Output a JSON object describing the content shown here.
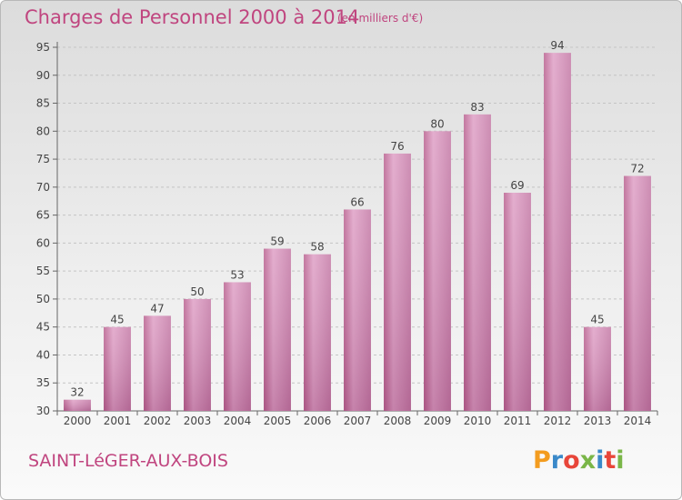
{
  "header": {
    "title": "Charges de Personnel 2000 à 2014",
    "subtitle": "(en milliers d'€)"
  },
  "footer": {
    "commune": "SAINT-LéGER-AUX-BOIS",
    "logo_text": "Proxiti",
    "logo_colors": [
      "#f39c1f",
      "#3a89c9",
      "#e8463a",
      "#7ab648",
      "#3a89c9",
      "#e8463a",
      "#7ab648"
    ]
  },
  "chart_data": {
    "type": "bar",
    "title": "Charges de Personnel 2000 à 2014",
    "subtitle": "(en milliers d'€)",
    "xlabel": "",
    "ylabel": "",
    "categories": [
      "2000",
      "2001",
      "2002",
      "2003",
      "2004",
      "2005",
      "2006",
      "2007",
      "2008",
      "2009",
      "2010",
      "2011",
      "2012",
      "2013",
      "2014"
    ],
    "values": [
      32,
      45,
      47,
      50,
      53,
      59,
      58,
      66,
      76,
      80,
      83,
      69,
      94,
      45,
      72
    ],
    "ylim": [
      30,
      95
    ],
    "yticks": [
      30,
      35,
      40,
      45,
      50,
      55,
      60,
      65,
      70,
      75,
      80,
      85,
      90,
      95
    ],
    "grid": true,
    "bar_color": "#cc7aaa",
    "legend": "none"
  }
}
